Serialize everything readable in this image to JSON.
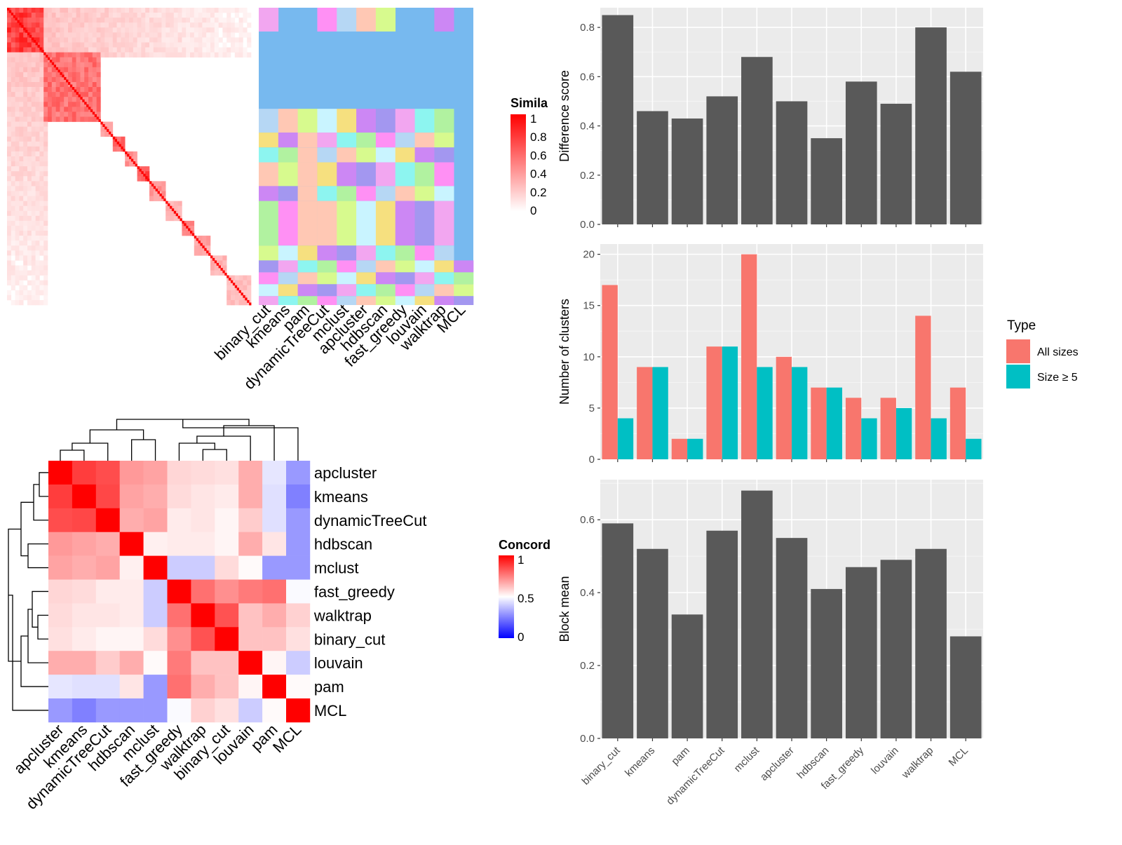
{
  "chart_data": [
    {
      "type": "heatmap",
      "panel": "similarity-matrix-with-cluster-assignments",
      "column_labels": [
        "binary_cut",
        "kmeans",
        "pam",
        "dynamicTreeCut",
        "mclust",
        "apcluster",
        "hdbscan",
        "fast_greedy",
        "louvain",
        "walktrap",
        "MCL"
      ],
      "legend": {
        "title": "Similarity",
        "visible_title": "Simila",
        "ticks": [
          "1",
          "0.8",
          "0.6",
          "0.4",
          "0.2",
          "0"
        ],
        "colors": [
          "#ffffff",
          "#ff0000"
        ]
      },
      "note": "Term similarity matrix (diagonal blocks) beside categorical cluster assignments per method."
    },
    {
      "type": "heatmap",
      "panel": "concordance",
      "row_labels": [
        "apcluster",
        "kmeans",
        "dynamicTreeCut",
        "hdbscan",
        "mclust",
        "fast_greedy",
        "walktrap",
        "binary_cut",
        "louvain",
        "pam",
        "MCL"
      ],
      "column_labels": [
        "apcluster",
        "kmeans",
        "dynamicTreeCut",
        "hdbscan",
        "mclust",
        "fast_greedy",
        "walktrap",
        "binary_cut",
        "louvain",
        "pam",
        "MCL"
      ],
      "values": [
        [
          1.0,
          0.88,
          0.85,
          0.7,
          0.68,
          0.58,
          0.57,
          0.56,
          0.66,
          0.45,
          0.3
        ],
        [
          0.88,
          1.0,
          0.86,
          0.68,
          0.66,
          0.57,
          0.55,
          0.54,
          0.66,
          0.44,
          0.25
        ],
        [
          0.85,
          0.86,
          1.0,
          0.66,
          0.68,
          0.54,
          0.55,
          0.52,
          0.6,
          0.44,
          0.3
        ],
        [
          0.7,
          0.68,
          0.66,
          1.0,
          0.53,
          0.54,
          0.54,
          0.52,
          0.66,
          0.55,
          0.3
        ],
        [
          0.68,
          0.66,
          0.68,
          0.53,
          1.0,
          0.4,
          0.4,
          0.57,
          0.51,
          0.3,
          0.3
        ],
        [
          0.58,
          0.57,
          0.54,
          0.54,
          0.4,
          1.0,
          0.78,
          0.72,
          0.76,
          0.78,
          0.49
        ],
        [
          0.57,
          0.55,
          0.55,
          0.54,
          0.4,
          0.78,
          1.0,
          0.84,
          0.62,
          0.66,
          0.59
        ],
        [
          0.56,
          0.54,
          0.52,
          0.52,
          0.57,
          0.72,
          0.84,
          1.0,
          0.62,
          0.62,
          0.56
        ],
        [
          0.66,
          0.66,
          0.6,
          0.66,
          0.51,
          0.76,
          0.62,
          0.62,
          1.0,
          0.52,
          0.4
        ],
        [
          0.45,
          0.44,
          0.44,
          0.55,
          0.3,
          0.78,
          0.66,
          0.62,
          0.52,
          1.0,
          0.51
        ],
        [
          0.3,
          0.25,
          0.3,
          0.3,
          0.3,
          0.49,
          0.59,
          0.56,
          0.4,
          0.51,
          1.0
        ]
      ],
      "legend": {
        "title": "Concordance",
        "visible_title": "Concord",
        "ticks": [
          "1",
          "0.5",
          "0"
        ],
        "colors": [
          "#0000ff",
          "#ffffff",
          "#ff0000"
        ]
      }
    },
    {
      "type": "bar",
      "panel": "difference-score",
      "categories": [
        "binary_cut",
        "kmeans",
        "pam",
        "dynamicTreeCut",
        "mclust",
        "apcluster",
        "hdbscan",
        "fast_greedy",
        "louvain",
        "walktrap",
        "MCL"
      ],
      "values": [
        0.85,
        0.46,
        0.43,
        0.52,
        0.68,
        0.5,
        0.35,
        0.58,
        0.49,
        0.8,
        0.62
      ],
      "ylabel": "Difference score",
      "ylim": [
        0,
        0.88
      ],
      "yticks": [
        "0.0",
        "0.2",
        "0.4",
        "0.6",
        "0.8"
      ],
      "color": "#595959"
    },
    {
      "type": "bar",
      "panel": "number-of-clusters",
      "categories": [
        "binary_cut",
        "kmeans",
        "pam",
        "dynamicTreeCut",
        "mclust",
        "apcluster",
        "hdbscan",
        "fast_greedy",
        "louvain",
        "walktrap",
        "MCL"
      ],
      "series": [
        {
          "name": "All sizes",
          "values": [
            17,
            9,
            2,
            11,
            20,
            10,
            7,
            6,
            6,
            14,
            7
          ],
          "color": "#F8766D"
        },
        {
          "name": "Size ≥ 5",
          "values": [
            4,
            9,
            2,
            11,
            9,
            9,
            7,
            4,
            5,
            4,
            2
          ],
          "color": "#00BFC4"
        }
      ],
      "ylabel": "Number of clusters",
      "ylim": [
        0,
        21
      ],
      "yticks": [
        "0",
        "5",
        "10",
        "15",
        "20"
      ],
      "legend": {
        "title": "Type",
        "placement": "right"
      }
    },
    {
      "type": "bar",
      "panel": "block-mean",
      "categories": [
        "binary_cut",
        "kmeans",
        "pam",
        "dynamicTreeCut",
        "mclust",
        "apcluster",
        "hdbscan",
        "fast_greedy",
        "louvain",
        "walktrap",
        "MCL"
      ],
      "values": [
        0.59,
        0.52,
        0.34,
        0.57,
        0.68,
        0.55,
        0.41,
        0.47,
        0.49,
        0.52,
        0.28
      ],
      "ylabel": "Block mean",
      "ylim": [
        0,
        0.71
      ],
      "yticks": [
        "0.0",
        "0.2",
        "0.4",
        "0.6"
      ],
      "color": "#595959"
    }
  ]
}
